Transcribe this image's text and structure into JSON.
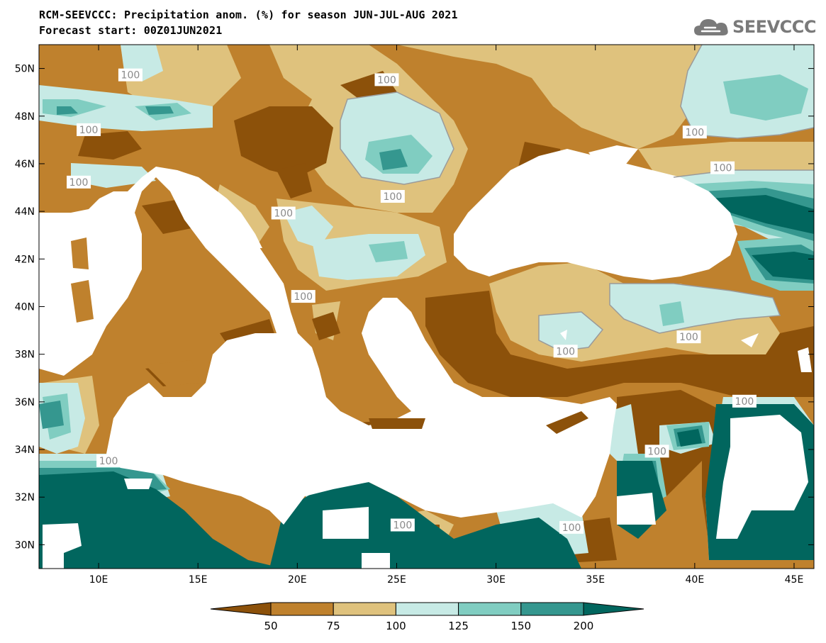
{
  "header": {
    "title_line1": "RCM-SEEVCCC: Precipitation anom. (%) for season JUN-JUL-AUG 2021",
    "title_line2": "Forecast start: 00Z01JUN2021"
  },
  "logo": {
    "text": "SEEVCCC",
    "icon": "cloud-logo-icon",
    "color": "#7a7a7a"
  },
  "map": {
    "lon_range": [
      7,
      46
    ],
    "lat_range": [
      29,
      51
    ],
    "lon_ticks": [
      {
        "value": 10,
        "label": "10E"
      },
      {
        "value": 15,
        "label": "15E"
      },
      {
        "value": 20,
        "label": "20E"
      },
      {
        "value": 25,
        "label": "25E"
      },
      {
        "value": 30,
        "label": "30E"
      },
      {
        "value": 35,
        "label": "35E"
      },
      {
        "value": 40,
        "label": "40E"
      },
      {
        "value": 45,
        "label": "45E"
      }
    ],
    "lat_ticks": [
      {
        "value": 30,
        "label": "30N"
      },
      {
        "value": 32,
        "label": "32N"
      },
      {
        "value": 34,
        "label": "34N"
      },
      {
        "value": 36,
        "label": "36N"
      },
      {
        "value": 38,
        "label": "38N"
      },
      {
        "value": 40,
        "label": "40N"
      },
      {
        "value": 42,
        "label": "42N"
      },
      {
        "value": 44,
        "label": "44N"
      },
      {
        "value": 46,
        "label": "46N"
      },
      {
        "value": 48,
        "label": "48N"
      },
      {
        "value": 50,
        "label": "50N"
      }
    ],
    "contour_label": "100",
    "contour_labels_lonlat": [
      [
        11.6,
        49.7
      ],
      [
        9.5,
        47.4
      ],
      [
        9.0,
        45.2
      ],
      [
        24.5,
        49.5
      ],
      [
        24.8,
        44.6
      ],
      [
        19.3,
        43.9
      ],
      [
        20.3,
        40.4
      ],
      [
        10.5,
        33.5
      ],
      [
        25.3,
        30.8
      ],
      [
        33.8,
        30.7
      ],
      [
        33.5,
        38.1
      ],
      [
        38.1,
        33.9
      ],
      [
        39.7,
        38.7
      ],
      [
        42.5,
        36.0
      ],
      [
        41.4,
        45.8
      ],
      [
        40.0,
        47.3
      ]
    ],
    "colors": {
      "lt50": "#8c510a",
      "50_75": "#bf812d",
      "75_100": "#dfc27d",
      "100_125": "#c7eae5",
      "125_150": "#80cdc1",
      "150_200": "#35978f",
      "gt200": "#01665e",
      "sea": "#ffffff"
    }
  },
  "colorbar": {
    "colors": [
      "#8c510a",
      "#bf812d",
      "#dfc27d",
      "#c7eae5",
      "#80cdc1",
      "#35978f",
      "#01665e"
    ],
    "labels": [
      "50",
      "75",
      "100",
      "125",
      "150",
      "200"
    ]
  }
}
